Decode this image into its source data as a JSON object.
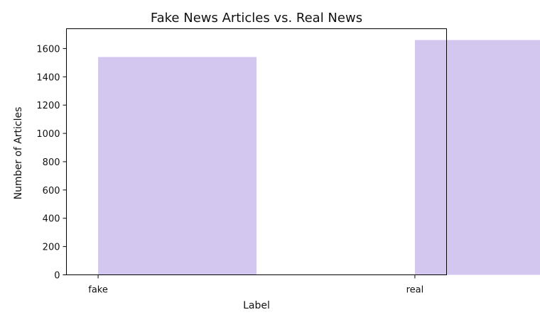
{
  "chart_data": {
    "type": "bar",
    "title": "Fake News Articles vs. Real News",
    "xlabel": "Label",
    "ylabel": "Number of Articles",
    "categories": [
      "fake",
      "real"
    ],
    "values": [
      1540,
      1660
    ],
    "ylim": [
      0,
      1740
    ],
    "yticks": [
      0,
      200,
      400,
      600,
      800,
      1000,
      1200,
      1400,
      1600
    ],
    "xlim": [
      -0.1,
      1.1
    ],
    "bar_width": 0.5,
    "bar_color": "#d4c7ef",
    "grid": false,
    "legend": "none"
  }
}
